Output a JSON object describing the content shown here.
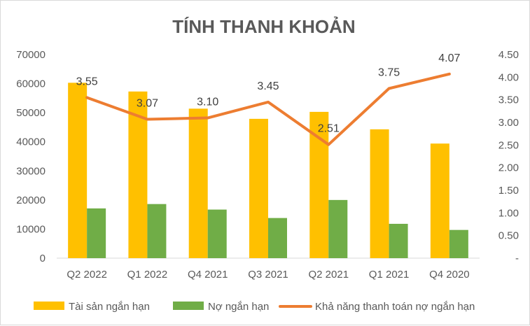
{
  "chart_data": {
    "type": "bar",
    "title": "TÍNH THANH KHOẢN",
    "categories": [
      "Q2 2022",
      "Q1 2022",
      "Q4 2021",
      "Q3 2021",
      "Q2 2021",
      "Q1 2021",
      "Q4 2020"
    ],
    "series": [
      {
        "name": "Tài sản ngắn hạn",
        "type": "bar",
        "axis": "left",
        "color": "#ffc000",
        "values": [
          60300,
          57300,
          51400,
          47900,
          50300,
          44300,
          39400
        ]
      },
      {
        "name": "Nợ ngắn hạn",
        "type": "bar",
        "axis": "left",
        "color": "#70ad47",
        "values": [
          17100,
          18600,
          16700,
          13800,
          20000,
          11800,
          9700
        ]
      },
      {
        "name": "Khả năng thanh toán nợ ngắn hạn",
        "type": "line",
        "axis": "right",
        "color": "#ed7d31",
        "values": [
          3.55,
          3.07,
          3.1,
          3.45,
          2.51,
          3.75,
          4.07
        ],
        "labels": [
          "3.55",
          "3.07",
          "3.10",
          "3.45",
          "2.51",
          "3.75",
          "4.07"
        ]
      }
    ],
    "y_left": {
      "ylim": [
        0,
        70000
      ],
      "ticks": [
        0,
        10000,
        20000,
        30000,
        40000,
        50000,
        60000,
        70000
      ],
      "tick_labels": [
        "0",
        "10000",
        "20000",
        "30000",
        "40000",
        "50000",
        "60000",
        "70000"
      ]
    },
    "y_right": {
      "ylim": [
        0,
        4.5
      ],
      "ticks": [
        0,
        0.5,
        1.0,
        1.5,
        2.0,
        2.5,
        3.0,
        3.5,
        4.0,
        4.5
      ],
      "tick_labels": [
        "-",
        "0.50",
        "1.00",
        "1.50",
        "2.00",
        "2.50",
        "3.00",
        "3.50",
        "4.00",
        "4.50"
      ]
    },
    "grid": false,
    "legend_position": "bottom",
    "axis_color": "#d9d9d9",
    "text_color": "#595959"
  }
}
